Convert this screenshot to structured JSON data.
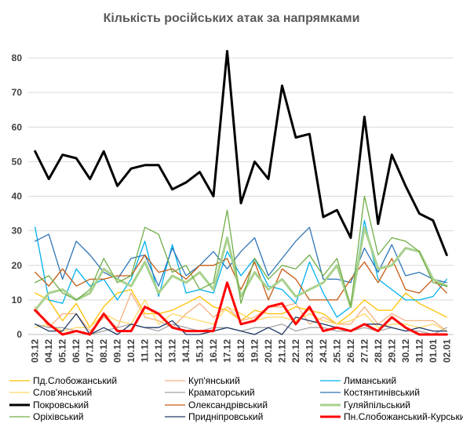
{
  "chart_data": {
    "type": "line",
    "title": "Кількість російських атак за напрямками",
    "xlabel": "",
    "ylabel": "",
    "ylim": [
      0,
      85
    ],
    "yticks": [
      0,
      10,
      20,
      30,
      40,
      50,
      60,
      70,
      80
    ],
    "grid": true,
    "legend_position": "bottom",
    "x": [
      "03.12",
      "04.12",
      "05.12",
      "06.12",
      "07.12",
      "08.12",
      "09.12",
      "10.12",
      "11.12",
      "12.12",
      "13.12",
      "14.12",
      "15.12",
      "16.12",
      "17.12",
      "18.12",
      "19.12",
      "20.12",
      "21.12",
      "22.12",
      "23.12",
      "24.12",
      "25.12",
      "26.12",
      "27.12",
      "28.12",
      "29.12",
      "30.12",
      "31.12",
      "01.01",
      "02.01"
    ],
    "x_labels": [
      "03.12",
      "04.12",
      "05.12",
      "06.12",
      "07.12",
      "08.12",
      "09.12",
      "10.12",
      "11.12",
      "12.12",
      "13.12",
      "14.12",
      "15.12",
      "16.12",
      "17.12",
      "18.12",
      "19.12",
      "20.12",
      "21.12",
      "22.12",
      "23.12",
      "24.12",
      "25.12",
      "26.12",
      "27.12",
      "28.12",
      "29.12",
      "30.12",
      "31.12",
      "01.01",
      "02.01"
    ],
    "series": [
      {
        "name": "Пд.Слобожанський",
        "color": "#ffc000",
        "width": 1.3,
        "values": [
          12,
          10,
          4,
          9,
          2,
          8,
          12,
          13,
          6,
          6,
          7,
          9,
          11,
          8,
          7,
          4,
          7,
          6,
          6,
          8,
          7,
          6,
          3,
          6,
          10,
          7,
          7,
          12,
          9,
          7,
          5
        ]
      },
      {
        "name": "Куп'янський",
        "color": "#f4b183",
        "width": 1.3,
        "values": [
          8,
          2,
          6,
          6,
          1,
          5,
          2,
          12,
          5,
          4,
          2,
          6,
          9,
          5,
          8,
          4,
          5,
          8,
          8,
          9,
          3,
          5,
          3,
          3,
          8,
          3,
          6,
          4,
          4,
          4,
          1
        ]
      },
      {
        "name": "Лиманський",
        "color": "#00b0f0",
        "width": 1.3,
        "values": [
          31,
          10,
          9,
          19,
          14,
          16,
          10,
          16,
          27,
          11,
          26,
          12,
          13,
          12,
          24,
          17,
          22,
          14,
          13,
          9,
          21,
          12,
          5,
          8,
          33,
          16,
          13,
          10,
          10,
          11,
          16
        ]
      },
      {
        "name": "Слов'янський",
        "color": "#ffd966",
        "width": 1.3,
        "values": [
          2,
          3,
          1,
          2,
          2,
          6,
          4,
          3,
          10,
          3,
          6,
          5,
          4,
          3,
          8,
          6,
          4,
          5,
          5,
          4,
          6,
          4,
          3,
          4,
          6,
          2,
          3,
          3,
          2,
          3,
          1
        ]
      },
      {
        "name": "Краматорський",
        "color": "#a5a5a5",
        "width": 1.3,
        "values": [
          3,
          2,
          2,
          1,
          0,
          1,
          2,
          3,
          2,
          1,
          3,
          2,
          1,
          2,
          2,
          1,
          2,
          2,
          3,
          1,
          2,
          2,
          1,
          1,
          2,
          1,
          2,
          1,
          1,
          0,
          2
        ]
      },
      {
        "name": "Костянтинівський",
        "color": "#2e75b6",
        "width": 1.3,
        "values": [
          27,
          29,
          16,
          27,
          23,
          18,
          16,
          22,
          23,
          14,
          25,
          17,
          20,
          24,
          19,
          24,
          28,
          17,
          22,
          27,
          31,
          16,
          16,
          15,
          25,
          18,
          26,
          17,
          18,
          16,
          15
        ]
      },
      {
        "name": "Покровський",
        "color": "#000000",
        "width": 3.0,
        "values": [
          53,
          45,
          52,
          51,
          45,
          53,
          43,
          48,
          49,
          49,
          42,
          44,
          47,
          40,
          82,
          38,
          50,
          45,
          72,
          57,
          58,
          34,
          36,
          28,
          63,
          32,
          52,
          43,
          35,
          33,
          23
        ]
      },
      {
        "name": "Олександрівський",
        "color": "#c55a11",
        "width": 1.3,
        "values": [
          18,
          14,
          19,
          14,
          16,
          16,
          17,
          17,
          23,
          18,
          19,
          16,
          20,
          20,
          22,
          13,
          21,
          10,
          19,
          16,
          10,
          10,
          10,
          16,
          21,
          15,
          22,
          13,
          12,
          16,
          12
        ]
      },
      {
        "name": "Гуляйпільський",
        "color": "#a9d18e",
        "width": 3.0,
        "values": [
          7,
          12,
          13,
          10,
          12,
          19,
          16,
          14,
          21,
          12,
          17,
          15,
          18,
          13,
          28,
          11,
          18,
          13,
          16,
          11,
          13,
          15,
          20,
          8,
          31,
          19,
          20,
          25,
          24,
          16,
          14
        ]
      },
      {
        "name": "Оріхівський",
        "color": "#70ad47",
        "width": 1.3,
        "values": [
          15,
          17,
          12,
          10,
          13,
          22,
          15,
          17,
          31,
          29,
          18,
          20,
          13,
          15,
          36,
          9,
          22,
          16,
          20,
          19,
          23,
          17,
          22,
          8,
          40,
          23,
          28,
          27,
          24,
          15,
          14
        ]
      },
      {
        "name": "Придніпровський",
        "color": "#1f3864",
        "width": 1.3,
        "values": [
          3,
          1,
          1,
          6,
          0,
          2,
          0,
          3,
          2,
          2,
          4,
          0,
          0,
          1,
          2,
          1,
          0,
          2,
          0,
          5,
          4,
          3,
          2,
          1,
          3,
          3,
          2,
          1,
          2,
          1,
          1
        ]
      },
      {
        "name": "Пн.Слобожанський-Курський",
        "color": "#ff0000",
        "width": 3.0,
        "values": [
          7,
          3,
          0,
          1,
          0,
          6,
          1,
          1,
          8,
          6,
          2,
          1,
          1,
          1,
          15,
          3,
          4,
          8,
          9,
          3,
          8,
          1,
          2,
          1,
          3,
          1,
          5,
          2,
          0,
          0,
          0
        ]
      }
    ]
  }
}
